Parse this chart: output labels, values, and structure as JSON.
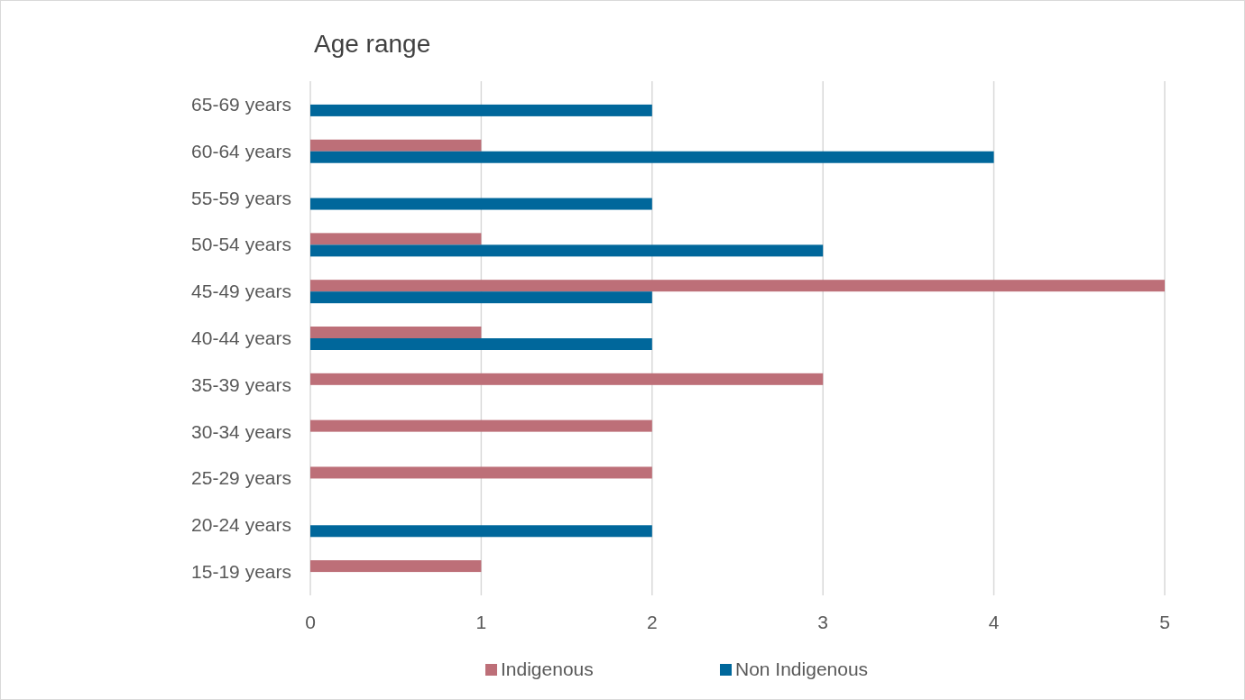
{
  "chart_data": {
    "type": "bar",
    "orientation": "horizontal",
    "title": "Age range",
    "categories": [
      "65-69 years",
      "60-64 years",
      "55-59 years",
      "50-54 years",
      "45-49 years",
      "40-44 years",
      "35-39 years",
      "30-34 years",
      "25-29 years",
      "20-24 years",
      "15-19 years"
    ],
    "series": [
      {
        "name": "Indigenous",
        "color": "#bd6f78",
        "values": [
          null,
          1,
          null,
          1,
          5,
          1,
          3,
          2,
          2,
          null,
          1
        ]
      },
      {
        "name": "Non Indigenous",
        "color": "#00679b",
        "values": [
          2,
          4,
          2,
          3,
          2,
          2,
          null,
          null,
          null,
          2,
          null
        ]
      }
    ],
    "xlim": [
      0,
      5
    ],
    "xticks": [
      0,
      1,
      2,
      3,
      4,
      5
    ],
    "grid": "x",
    "legend": "bottom"
  }
}
